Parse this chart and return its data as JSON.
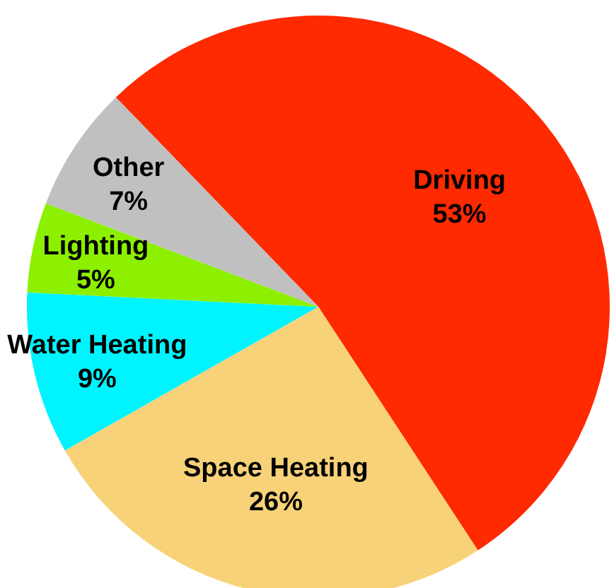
{
  "chart_data": {
    "type": "pie",
    "categories": [
      "Driving",
      "Space Heating",
      "Water Heating",
      "Lighting",
      "Other"
    ],
    "values": [
      53,
      26,
      9,
      5,
      7
    ],
    "colors": [
      "#ff2a00",
      "#f8d278",
      "#00f4ff",
      "#8cf000",
      "#c0c0c0"
    ],
    "value_labels": [
      "53%",
      "26%",
      "9%",
      "5%",
      "7%"
    ],
    "legend": false
  }
}
